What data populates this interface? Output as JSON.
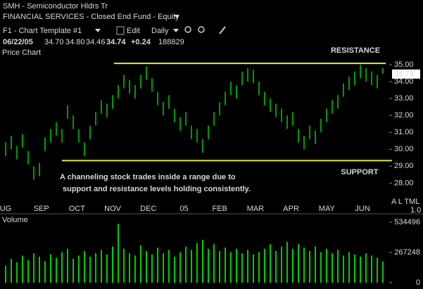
{
  "header": {
    "symbol_title": "SMH - Semiconductor Hldrs Tr",
    "sector": "FINANCIAL SERVICES - Closed End Fund - Equity",
    "template": "F1 - Chart Template #1",
    "edit": "Edit",
    "period": "Daily"
  },
  "quote": {
    "date": "06/22/05",
    "open": "34.70",
    "high": "34.80",
    "low": "34.46",
    "close": "34.74",
    "change": "+0.24",
    "volume": "188829"
  },
  "chart_data": [
    {
      "type": "ohlc",
      "label": "Price Chart",
      "color": "#00cc00",
      "month_labels": [
        "UG",
        "SEP",
        "OCT",
        "NOV",
        "DEC",
        "05",
        "FEB",
        "MAR",
        "APR",
        "MAY",
        "JUN"
      ],
      "series": [
        {
          "name": "High",
          "values": [
            30.4,
            30.8,
            30.2,
            30.9,
            29.9,
            29.0,
            29.2,
            30.7,
            31.2,
            31.6,
            31.2,
            32.6,
            32.0,
            31.2,
            30.4,
            31.4,
            32.2,
            32.9,
            32.7,
            33.2,
            33.8,
            34.4,
            34.1,
            33.8,
            34.4,
            34.9,
            34.2,
            33.4,
            32.8,
            33.2,
            32.4,
            31.9,
            32.2,
            31.4,
            31.2,
            30.6,
            31.4,
            32.2,
            32.8,
            33.4,
            34.0,
            33.8,
            34.6,
            34.8,
            34.7,
            34.0,
            33.4,
            33.0,
            32.7,
            32.4,
            32.0,
            32.2,
            31.2,
            30.8,
            31.4,
            31.1,
            31.8,
            32.4,
            32.9,
            33.2,
            33.9,
            34.3,
            34.6,
            35.0,
            34.8,
            34.6,
            34.4,
            34.8
          ]
        },
        {
          "name": "Low",
          "values": [
            29.6,
            30.0,
            29.4,
            30.1,
            29.1,
            28.2,
            28.4,
            29.9,
            30.4,
            30.8,
            30.4,
            31.8,
            31.2,
            30.4,
            29.6,
            30.6,
            31.4,
            32.1,
            31.9,
            32.4,
            33.0,
            33.6,
            33.3,
            33.0,
            33.6,
            34.1,
            33.4,
            32.6,
            32.0,
            32.4,
            31.6,
            31.1,
            31.4,
            30.6,
            30.4,
            29.8,
            30.6,
            31.4,
            32.0,
            32.6,
            33.2,
            33.0,
            33.8,
            34.0,
            33.9,
            33.2,
            32.6,
            32.2,
            31.9,
            31.6,
            31.2,
            31.4,
            30.4,
            30.0,
            30.6,
            30.3,
            31.0,
            31.6,
            32.1,
            32.4,
            33.1,
            33.5,
            33.8,
            34.2,
            34.0,
            33.8,
            33.6,
            34.46
          ]
        }
      ],
      "ylim": [
        26.85,
        35.5
      ],
      "yticks": [
        {
          "value": 28,
          "label": "28.00"
        },
        {
          "value": 29,
          "label": "29.00"
        },
        {
          "value": 30,
          "label": "30.00"
        },
        {
          "value": 31,
          "label": "31.00"
        },
        {
          "value": 32,
          "label": "32.00"
        },
        {
          "value": 33,
          "label": "33.00"
        },
        {
          "value": 34,
          "label": "34.00"
        },
        {
          "value": 35,
          "label": "35.00"
        }
      ],
      "resistance": {
        "label": "RESISTANCE",
        "value": 35.08,
        "color": "#e8e830"
      },
      "support": {
        "label": "SUPPORT",
        "value": 29.33,
        "color": "#e8e830"
      },
      "annotation": [
        "A channeling stock trades inside a range due to",
        "support and resistance levels holding consistently."
      ],
      "side_labels": {
        "scale": "A L TML",
        "ratio": "1.0"
      }
    },
    {
      "type": "volume",
      "label": "Volume",
      "color": "#00cc00",
      "values": [
        150000,
        210000,
        180000,
        240000,
        200000,
        260000,
        230000,
        190000,
        250000,
        220000,
        270000,
        300000,
        210000,
        240000,
        280000,
        230000,
        260000,
        290000,
        250000,
        320000,
        520000,
        300000,
        260000,
        240000,
        330000,
        280000,
        250000,
        310000,
        260000,
        290000,
        230000,
        270000,
        320000,
        290000,
        350000,
        380000,
        300000,
        340000,
        280000,
        310000,
        270000,
        300000,
        260000,
        290000,
        250000,
        270000,
        300000,
        340000,
        280000,
        320000,
        360000,
        300000,
        340000,
        310000,
        280000,
        320000,
        270000,
        300000,
        260000,
        290000,
        240000,
        270000,
        250000,
        230000,
        260000,
        240000,
        220000,
        188829
      ],
      "ylim": [
        0,
        534496
      ],
      "yticks": [
        0,
        267248,
        534496
      ]
    }
  ]
}
